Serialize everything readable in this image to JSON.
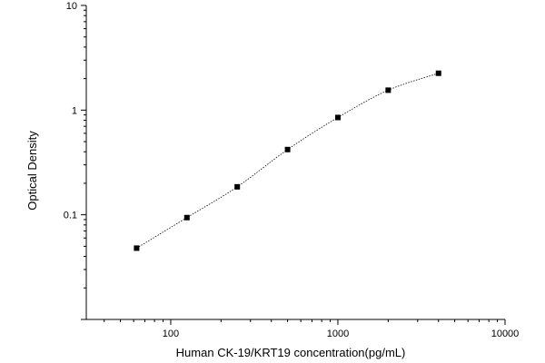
{
  "chart_data": {
    "type": "scatter",
    "title": "",
    "xlabel": "Human CK-19/KRT19 concentration(pg/mL)",
    "ylabel": "Optical Density",
    "xscale": "log",
    "yscale": "log",
    "xlim": [
      31.25,
      10000
    ],
    "ylim": [
      0.01,
      10
    ],
    "x_ticks": [
      100,
      1000,
      10000
    ],
    "x_tick_labels": [
      "100",
      "1000",
      "10000"
    ],
    "y_ticks": [
      0.1,
      1,
      10
    ],
    "y_tick_labels": [
      "0.1",
      "1",
      "10"
    ],
    "grid": false,
    "legend": "none",
    "colors": {
      "marker": "#000000",
      "curve": "#000000",
      "axis": "#000000"
    },
    "series": [
      {
        "marker": "square",
        "fit_curve": "dotted",
        "x": [
          62.5,
          125,
          250,
          500,
          1000,
          2000,
          4000
        ],
        "y": [
          0.048,
          0.094,
          0.185,
          0.42,
          0.85,
          1.55,
          2.25
        ]
      }
    ]
  }
}
